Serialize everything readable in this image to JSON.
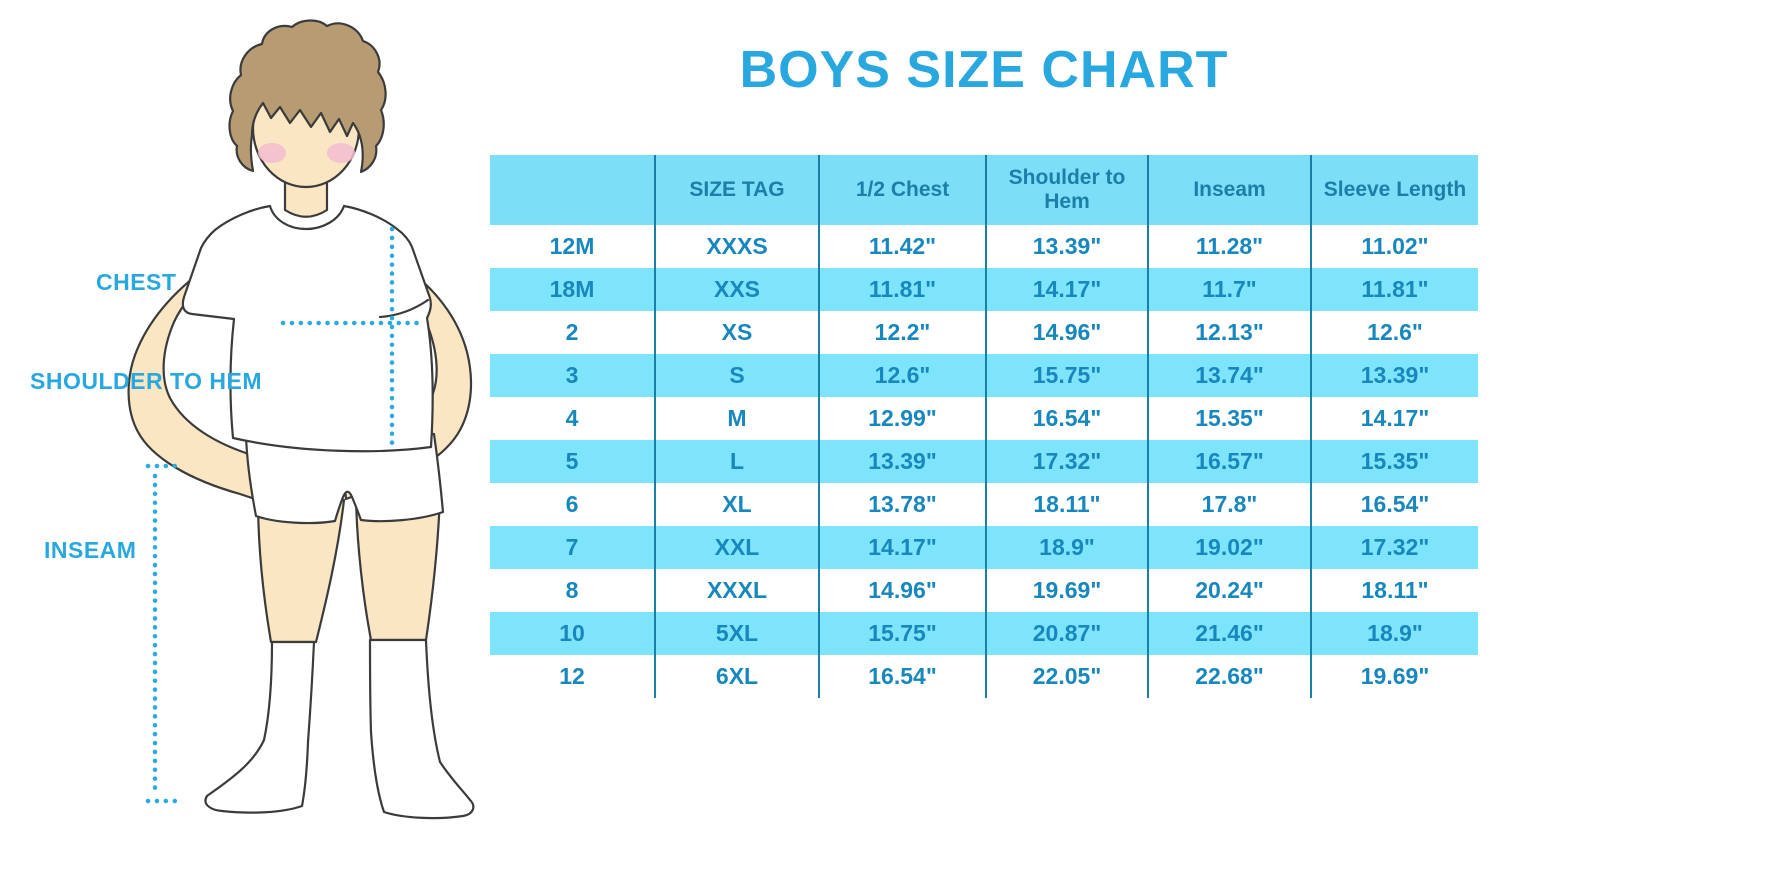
{
  "chart_data": {
    "type": "table",
    "title": "BOYS SIZE CHART",
    "columns": [
      "",
      "SIZE TAG",
      "1/2 Chest",
      "Shoulder to Hem",
      "Inseam",
      "Sleeve Length"
    ],
    "rows": [
      [
        "12M",
        "XXXS",
        "11.42\"",
        "13.39\"",
        "11.28\"",
        "11.02\""
      ],
      [
        "18M",
        "XXS",
        "11.81\"",
        "14.17\"",
        "11.7\"",
        "11.81\""
      ],
      [
        "2",
        "XS",
        "12.2\"",
        "14.96\"",
        "12.13\"",
        "12.6\""
      ],
      [
        "3",
        "S",
        "12.6\"",
        "15.75\"",
        "13.74\"",
        "13.39\""
      ],
      [
        "4",
        "M",
        "12.99\"",
        "16.54\"",
        "15.35\"",
        "14.17\""
      ],
      [
        "5",
        "L",
        "13.39\"",
        "17.32\"",
        "16.57\"",
        "15.35\""
      ],
      [
        "6",
        "XL",
        "13.78\"",
        "18.11\"",
        "17.8\"",
        "16.54\""
      ],
      [
        "7",
        "XXL",
        "14.17\"",
        "18.9\"",
        "19.02\"",
        "17.32\""
      ],
      [
        "8",
        "XXXL",
        "14.96\"",
        "19.69\"",
        "20.24\"",
        "18.11\""
      ],
      [
        "10",
        "5XL",
        "15.75\"",
        "20.87\"",
        "21.46\"",
        "18.9\""
      ],
      [
        "12",
        "6XL",
        "16.54\"",
        "22.05\"",
        "22.68\"",
        "19.69\""
      ]
    ],
    "layout": {
      "row_striping": "white / light-blue alternating",
      "grid": "vertical dividers only"
    }
  },
  "diagram_labels": {
    "chest": "CHEST",
    "shoulder_to_hem": "SHOULDER TO HEM",
    "inseam": "INSEAM"
  },
  "colors": {
    "accent_blue": "#29a8e0",
    "header_bg": "#7cdef7",
    "row_alt_bg": "#7ee4fb",
    "cell_text": "#1787be",
    "divider": "#1a7fa6",
    "skin": "#fbe6c3",
    "hair": "#b79b73"
  }
}
